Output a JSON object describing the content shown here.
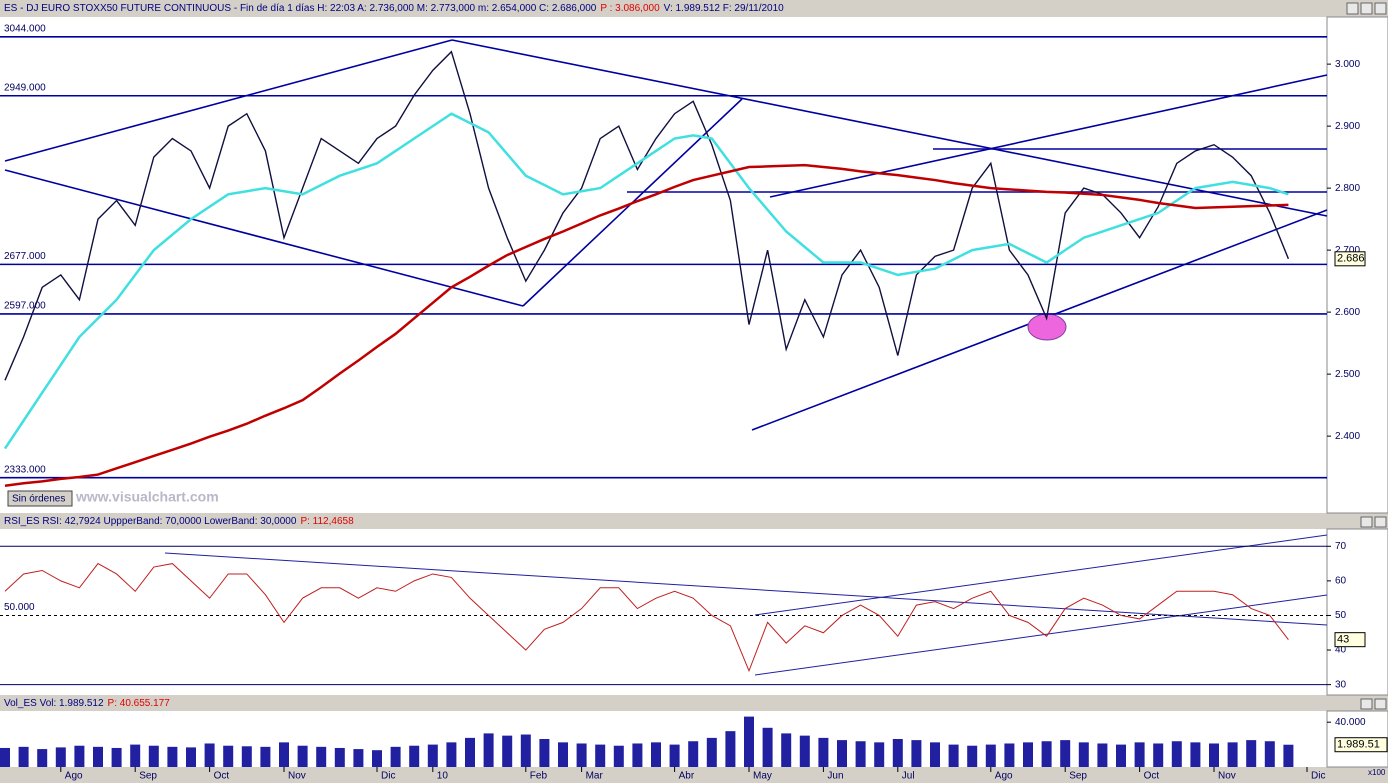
{
  "ui": {
    "button": "Sin órdenes",
    "watermark": "www.visualchart.com"
  },
  "chart_data": [
    {
      "type": "line",
      "header": [
        {
          "text": "ES - DJ EURO STOXX50 FUTURE CONTINUOUS - Fin de día 1 días H: 22:03 A: 2.736,000 M: 2.773,000 m: 2.654,000 C: 2.686,000",
          "color": "#000080"
        },
        {
          "text": "P : 3.086,000",
          "color": "#e00000"
        },
        {
          "text": "V: 1.989.512 F: 29/11/2010",
          "color": "#000080"
        }
      ],
      "ylim": [
        2276,
        3076
      ],
      "yticks": [
        {
          "value": 2400,
          "label": "2.400"
        },
        {
          "value": 2500,
          "label": "2.500"
        },
        {
          "value": 2600,
          "label": "2.600"
        },
        {
          "value": 2700,
          "label": "2.700"
        },
        {
          "value": 2800,
          "label": "2.800"
        },
        {
          "value": 2900,
          "label": "2.900"
        },
        {
          "value": 3000,
          "label": "3.000"
        }
      ],
      "levels": [
        {
          "value": 3044,
          "label": "3044.000"
        },
        {
          "value": 2949,
          "label": "2949.000"
        },
        {
          "value": 2677,
          "label": "2677.000"
        },
        {
          "value": 2597,
          "label": "2597.000"
        },
        {
          "value": 2333,
          "label": "2333.000"
        }
      ],
      "last": {
        "value": 2686,
        "label": "2.686"
      },
      "series": [
        {
          "color": "#101040",
          "values": [
            2490,
            2560,
            2640,
            2660,
            2620,
            2750,
            2780,
            2740,
            2850,
            2880,
            2860,
            2800,
            2900,
            2920,
            2860,
            2720,
            2800,
            2880,
            2860,
            2840,
            2880,
            2900,
            2950,
            2990,
            3020,
            2920,
            2800,
            2720,
            2650,
            2700,
            2760,
            2800,
            2880,
            2900,
            2830,
            2880,
            2920,
            2940,
            2870,
            2780,
            2580,
            2700,
            2540,
            2620,
            2560,
            2660,
            2700,
            2640,
            2530,
            2660,
            2690,
            2700,
            2800,
            2840,
            2700,
            2660,
            2590,
            2760,
            2800,
            2790,
            2760,
            2720,
            2770,
            2840,
            2860,
            2870,
            2850,
            2820,
            2760,
            2686,
            null
          ]
        },
        {
          "color": "#40e0e0",
          "values": [
            2380,
            2425,
            2470,
            2515,
            2560,
            2590,
            2620,
            2660,
            2700,
            2725,
            2750,
            2770,
            2790,
            2795,
            2800,
            2795,
            2790,
            2805,
            2820,
            2830,
            2840,
            2860,
            2880,
            2900,
            2920,
            2905,
            2890,
            2855,
            2820,
            2805,
            2790,
            2795,
            2800,
            2820,
            2840,
            2860,
            2880,
            2885,
            2880,
            2840,
            2800,
            2765,
            2730,
            2705,
            2680,
            2680,
            2680,
            2670,
            2660,
            2665,
            2670,
            2685,
            2700,
            2705,
            2710,
            2695,
            2680,
            2700,
            2720,
            2730,
            2740,
            2750,
            2760,
            2780,
            2800,
            2805,
            2810,
            2805,
            2800,
            2790,
            null
          ]
        },
        {
          "color": "#c00000",
          "values": [
            2320,
            2324,
            2327,
            2331,
            2334,
            2338,
            2348,
            2358,
            2368,
            2378,
            2388,
            2399,
            2409,
            2420,
            2433,
            2445,
            2458,
            2479,
            2501,
            2522,
            2544,
            2565,
            2590,
            2615,
            2640,
            2657,
            2675,
            2692,
            2705,
            2718,
            2730,
            2743,
            2756,
            2767,
            2779,
            2790,
            2802,
            2813,
            2820,
            2827,
            2834,
            2835,
            2836,
            2837,
            2834,
            2831,
            2827,
            2824,
            2821,
            2817,
            2813,
            2808,
            2804,
            2800,
            2798,
            2796,
            2794,
            2793,
            2791,
            2789,
            2785,
            2781,
            2776,
            2772,
            2768,
            2769,
            2770,
            2771,
            2772,
            2773,
            null
          ]
        }
      ]
    },
    {
      "type": "line",
      "header": [
        {
          "text": "RSI_ES RSI: 42,7924 UppperBand: 70,0000 LowerBand: 30,0000",
          "color": "#000080"
        },
        {
          "text": "P: 112,4658",
          "color": "#e00000"
        }
      ],
      "ylim": [
        27,
        75
      ],
      "yticks": [
        30,
        40,
        50,
        60,
        70
      ],
      "bands": [
        30,
        70
      ],
      "levels": [
        {
          "value": 50,
          "label": "50.000"
        }
      ],
      "last": {
        "value": 43,
        "label": "43"
      },
      "series": [
        {
          "color": "#c02020",
          "values": [
            57,
            62,
            63,
            60,
            58,
            65,
            62,
            57,
            64,
            65,
            60,
            55,
            62,
            62,
            56,
            48,
            55,
            58,
            58,
            55,
            58,
            57,
            60,
            62,
            61,
            55,
            50,
            45,
            40,
            46,
            48,
            52,
            58,
            58,
            52,
            55,
            57,
            55,
            50,
            47,
            34,
            48,
            42,
            47,
            45,
            50,
            53,
            50,
            44,
            53,
            54,
            52,
            55,
            57,
            50,
            48,
            44,
            52,
            55,
            53,
            50,
            49,
            53,
            57,
            57,
            57,
            56,
            52,
            50,
            43,
            null
          ]
        }
      ]
    },
    {
      "type": "bar",
      "header": [
        {
          "text": "Vol_ES Vol: 1.989.512",
          "color": "#000080"
        },
        {
          "text": "P: 40.655.177",
          "color": "#e00000"
        }
      ],
      "scale_note": "x100",
      "ylim": [
        0,
        50000
      ],
      "yticks": [
        {
          "value": 40000,
          "label": "40.000"
        }
      ],
      "last": {
        "value": 19895.12,
        "label": "1.989.51"
      },
      "categories": [
        null,
        null,
        null,
        "Ago",
        null,
        null,
        null,
        "Sep",
        null,
        null,
        null,
        "Oct",
        null,
        null,
        null,
        "Nov",
        null,
        null,
        null,
        null,
        "Dic",
        null,
        null,
        "10",
        null,
        null,
        null,
        null,
        "Feb",
        null,
        null,
        "Mar",
        null,
        null,
        null,
        null,
        "Abr",
        null,
        null,
        null,
        "May",
        null,
        null,
        null,
        "Jun",
        null,
        null,
        null,
        "Jul",
        null,
        null,
        null,
        null,
        "Ago",
        null,
        null,
        null,
        "Sep",
        null,
        null,
        null,
        "Oct",
        null,
        null,
        null,
        "Nov",
        null,
        null,
        null,
        null,
        "Dic"
      ],
      "color": "#2020a0",
      "values": [
        17000,
        18000,
        16000,
        17500,
        19000,
        18000,
        17000,
        20000,
        19000,
        18000,
        17500,
        21000,
        19000,
        18500,
        18000,
        22000,
        19000,
        18000,
        17000,
        16000,
        15000,
        18000,
        19000,
        20000,
        22000,
        26000,
        30000,
        28000,
        29000,
        25000,
        22000,
        21000,
        20000,
        19000,
        21000,
        22000,
        20000,
        23000,
        26000,
        32000,
        45000,
        35000,
        30000,
        28000,
        26000,
        24000,
        23000,
        22000,
        25000,
        24000,
        22000,
        20000,
        19000,
        20000,
        21000,
        22000,
        23000,
        24000,
        22000,
        21000,
        20000,
        22000,
        21000,
        23000,
        22000,
        21000,
        22000,
        24000,
        23000,
        19895.12,
        null
      ]
    }
  ]
}
